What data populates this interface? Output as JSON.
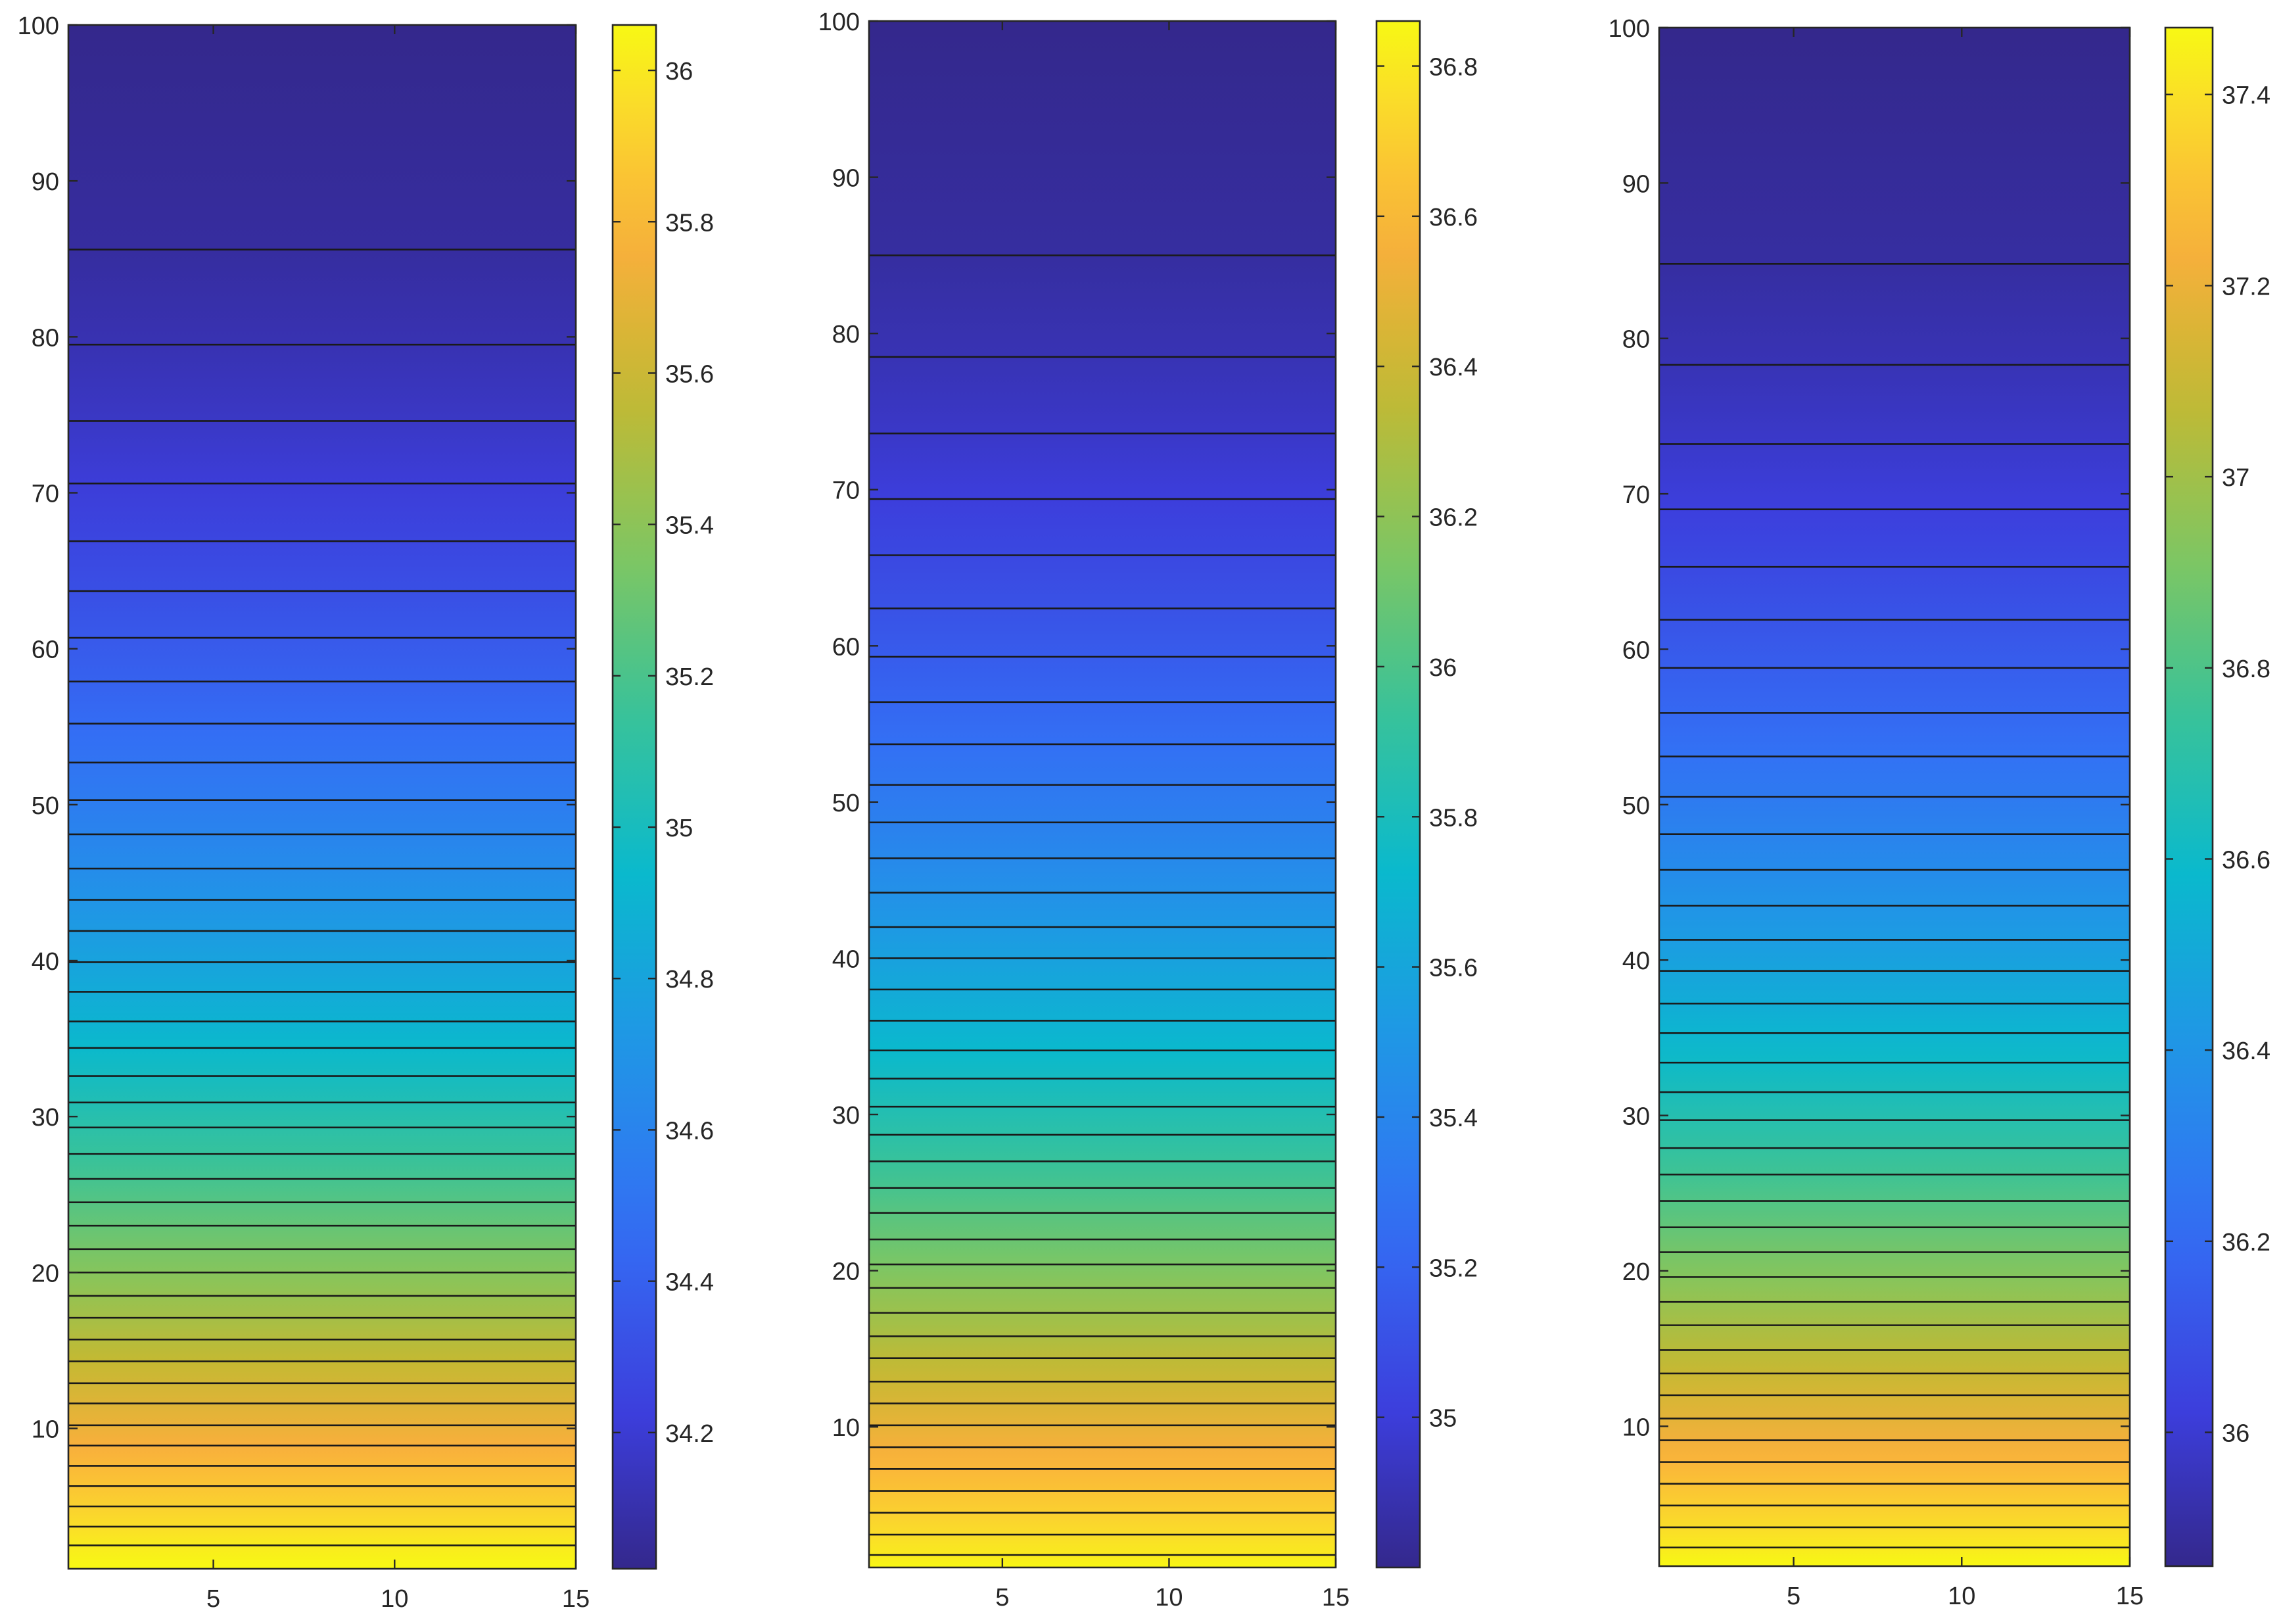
{
  "chart_data": [
    {
      "type": "heatmap",
      "title": "",
      "xlabel": "",
      "ylabel": "",
      "xlim": [
        1,
        15
      ],
      "ylim": [
        1,
        100
      ],
      "xticks": [
        5,
        10,
        15
      ],
      "yticks": [
        10,
        20,
        30,
        40,
        50,
        60,
        70,
        80,
        90,
        100
      ],
      "grid": false,
      "colormap": "parula",
      "colorbar": {
        "position": "right",
        "range": [
          34.02,
          36.06
        ],
        "ticks": [
          34.2,
          34.4,
          34.6,
          34.8,
          35,
          35.2,
          35.4,
          35.6,
          35.8,
          36
        ]
      },
      "contour_levels_y": [
        85.6,
        79.5,
        74.6,
        70.6,
        66.9,
        63.7,
        60.7,
        57.9,
        55.2,
        52.7,
        50.3,
        48.1,
        45.9,
        43.9,
        41.9,
        39.9,
        38.0,
        36.1,
        34.4,
        32.6,
        30.9,
        29.3,
        27.6,
        26.0,
        24.5,
        23.0,
        21.5,
        20.0,
        18.5,
        17.1,
        15.7,
        14.3,
        12.9,
        11.6,
        10.2,
        8.9,
        7.6,
        6.3,
        5.0,
        3.7,
        2.5
      ]
    },
    {
      "type": "heatmap",
      "title": "",
      "xlabel": "",
      "ylabel": "",
      "xlim": [
        1,
        15
      ],
      "ylim": [
        1,
        100
      ],
      "xticks": [
        5,
        10,
        15
      ],
      "yticks": [
        10,
        20,
        30,
        40,
        50,
        60,
        70,
        80,
        90,
        100
      ],
      "grid": false,
      "colormap": "parula",
      "colorbar": {
        "position": "right",
        "range": [
          34.8,
          36.86
        ],
        "ticks": [
          35,
          35.2,
          35.4,
          35.6,
          35.8,
          36,
          36.2,
          36.4,
          36.6,
          36.8
        ]
      },
      "contour_levels_y": [
        85.0,
        78.5,
        73.6,
        69.4,
        65.8,
        62.4,
        59.3,
        56.4,
        53.7,
        51.1,
        48.7,
        46.4,
        44.2,
        42.0,
        40.0,
        38.0,
        36.0,
        34.1,
        32.3,
        30.5,
        28.7,
        27.0,
        25.3,
        23.7,
        22.0,
        20.4,
        18.9,
        17.3,
        15.8,
        14.4,
        12.9,
        11.5,
        10.1,
        8.7,
        7.3,
        5.9,
        4.5,
        3.1,
        1.8
      ]
    },
    {
      "type": "heatmap",
      "title": "",
      "xlabel": "",
      "ylabel": "",
      "xlim": [
        1,
        15
      ],
      "ylim": [
        1,
        100
      ],
      "xticks": [
        5,
        10,
        15
      ],
      "yticks": [
        10,
        20,
        30,
        40,
        50,
        60,
        70,
        80,
        90,
        100
      ],
      "grid": false,
      "colormap": "parula",
      "colorbar": {
        "position": "right",
        "range": [
          35.86,
          37.47
        ],
        "ticks": [
          36,
          36.2,
          36.4,
          36.6,
          36.8,
          37,
          37.2,
          37.4
        ]
      },
      "contour_levels_y": [
        84.8,
        78.3,
        73.2,
        69.0,
        65.3,
        61.9,
        58.8,
        55.9,
        53.1,
        50.5,
        48.1,
        45.8,
        43.5,
        41.3,
        39.3,
        37.2,
        35.3,
        33.4,
        31.5,
        29.7,
        27.9,
        26.2,
        24.5,
        22.8,
        21.2,
        19.6,
        18.0,
        16.5,
        14.9,
        13.4,
        12.0,
        10.5,
        9.1,
        7.7,
        6.3,
        4.9,
        3.5,
        2.2
      ]
    }
  ]
}
